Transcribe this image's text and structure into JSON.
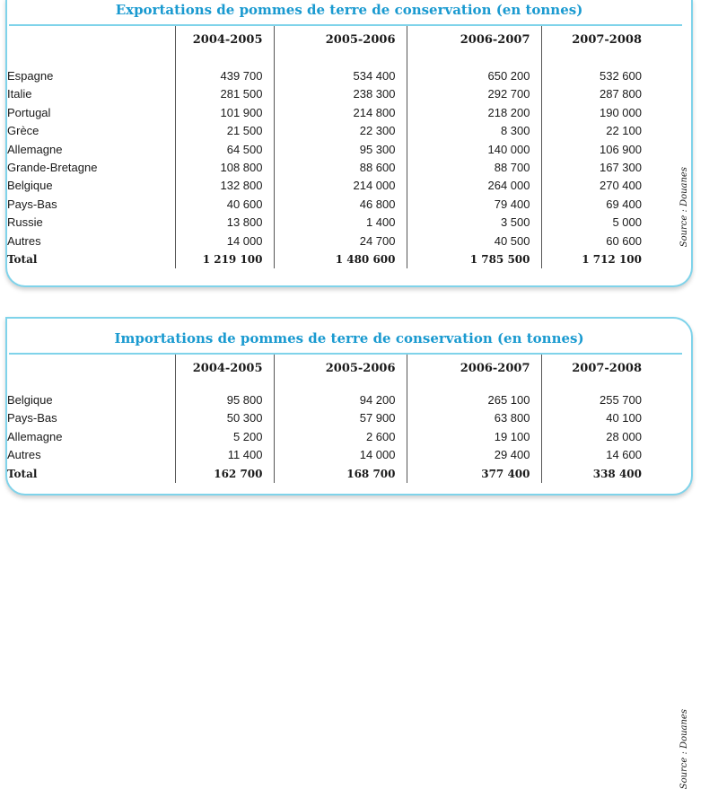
{
  "exports": {
    "title": "Exportations de pommes de terre de conservation (en tonnes)",
    "columns": [
      "2004-2005",
      "2005-2006",
      "2006-2007",
      "2007-2008"
    ],
    "rows": [
      {
        "country": "Espagne",
        "values": [
          "439 700",
          "534 400",
          "650 200",
          "532 600"
        ]
      },
      {
        "country": "Italie",
        "values": [
          "281 500",
          "238 300",
          "292 700",
          "287 800"
        ]
      },
      {
        "country": "Portugal",
        "values": [
          "101 900",
          "214 800",
          "218 200",
          "190 000"
        ]
      },
      {
        "country": "Grèce",
        "values": [
          "21 500",
          "22 300",
          "8 300",
          "22 100"
        ]
      },
      {
        "country": "Allemagne",
        "values": [
          "64 500",
          "95 300",
          "140 000",
          "106 900"
        ]
      },
      {
        "country": "Grande-Bretagne",
        "values": [
          "108 800",
          "88 600",
          "88 700",
          "167 300"
        ]
      },
      {
        "country": "Belgique",
        "values": [
          "132 800",
          "214 000",
          "264 000",
          "270 400"
        ]
      },
      {
        "country": "Pays-Bas",
        "values": [
          "40 600",
          "46 800",
          "79 400",
          "69 400"
        ]
      },
      {
        "country": "Russie",
        "values": [
          "13 800",
          "1 400",
          "3 500",
          "5 000"
        ]
      },
      {
        "country": "Autres",
        "values": [
          "14 000",
          "24 700",
          "40 500",
          "60 600"
        ]
      }
    ],
    "total": {
      "label": "Total",
      "values": [
        "1 219 100",
        "1 480 600",
        "1 785 500",
        "1 712 100"
      ]
    },
    "source": "Source : Douanes"
  },
  "imports": {
    "title": "Importations de pommes de terre de conservation (en tonnes)",
    "columns": [
      "2004-2005",
      "2005-2006",
      "2006-2007",
      "2007-2008"
    ],
    "rows": [
      {
        "country": "Belgique",
        "values": [
          "95 800",
          "94 200",
          "265 100",
          "255 700"
        ]
      },
      {
        "country": "Pays-Bas",
        "values": [
          "50 300",
          "57 900",
          "63 800",
          "40 100"
        ]
      },
      {
        "country": "Allemagne",
        "values": [
          "5 200",
          "2 600",
          "19 100",
          "28 000"
        ]
      },
      {
        "country": "Autres",
        "values": [
          "11 400",
          "14 000",
          "29 400",
          "14 600"
        ]
      }
    ],
    "total": {
      "label": "Total",
      "values": [
        "162 700",
        "168 700",
        "377 400",
        "338 400"
      ]
    },
    "source": "Source : Douanes"
  }
}
